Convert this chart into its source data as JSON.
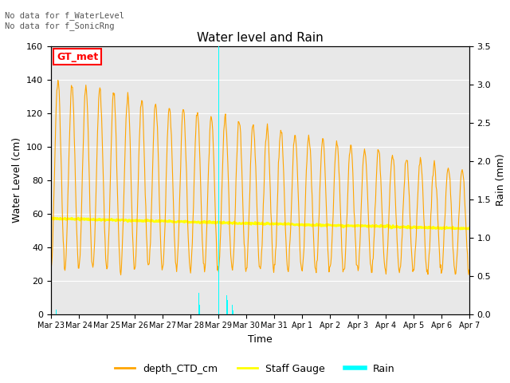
{
  "title": "Water level and Rain",
  "xlabel": "Time",
  "ylabel_left": "Water Level (cm)",
  "ylabel_right": "Rain (mm)",
  "ylim_left": [
    0,
    160
  ],
  "ylim_right": [
    0,
    3.5
  ],
  "yticks_left": [
    0,
    20,
    40,
    60,
    80,
    100,
    120,
    140,
    160
  ],
  "yticks_right": [
    0.0,
    0.5,
    1.0,
    1.5,
    2.0,
    2.5,
    3.0,
    3.5
  ],
  "annotation_top": "No data for f_WaterLevel\nNo data for f_SonicRng",
  "box_label": "GT_met",
  "colors": {
    "ctd": "#FFA500",
    "staff": "#FFFF00",
    "rain": "#00FFFF",
    "box_edge": "#CC0000",
    "box_face": "#FFFFFF",
    "background": "#E8E8E8"
  },
  "legend_labels": [
    "depth_CTD_cm",
    "Staff Gauge",
    "Rain"
  ],
  "xlim": [
    0,
    15
  ],
  "tick_labels": [
    "Mar 23",
    "Mar 24",
    "Mar 25",
    "Mar 26",
    "Mar 27",
    "Mar 28",
    "Mar 29",
    "Mar 30",
    "Mar 31",
    "Apr 1",
    "Apr 2",
    "Apr 3",
    "Apr 4",
    "Apr 5",
    "Apr 6",
    "Apr 7"
  ]
}
